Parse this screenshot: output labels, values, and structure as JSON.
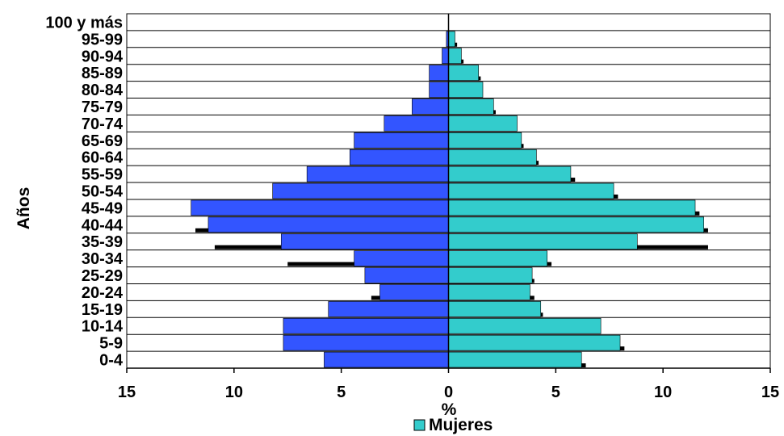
{
  "chart_data": {
    "type": "bar",
    "orientation": "horizontal",
    "xlabel": "%",
    "ylabel": "Años",
    "xlim": [
      -15,
      15
    ],
    "x_ticks": [
      -15,
      -10,
      -5,
      0,
      5,
      10,
      15
    ],
    "x_tick_labels": [
      "15",
      "10",
      "5",
      "0",
      "5",
      "10",
      "15"
    ],
    "grid": "horizontal",
    "legend_position": "bottom",
    "categories": [
      "0-4",
      "5-9",
      "10-14",
      "15-19",
      "20-24",
      "25-29",
      "30-34",
      "35-39",
      "40-44",
      "45-49",
      "50-54",
      "55-59",
      "60-64",
      "65-69",
      "70-74",
      "75-79",
      "80-84",
      "85-89",
      "90-94",
      "95-99",
      "100 y más"
    ],
    "series": [
      {
        "key": "left",
        "color": "#3355ff",
        "values": [
          5.8,
          7.7,
          7.7,
          5.6,
          3.2,
          3.9,
          4.4,
          7.8,
          11.2,
          12.0,
          8.2,
          6.6,
          4.6,
          4.4,
          3.0,
          1.7,
          0.9,
          0.9,
          0.3,
          0.1,
          0.0
        ]
      },
      {
        "name": "Mujeres",
        "key": "right",
        "color": "#33cccc",
        "values": [
          6.2,
          8.0,
          7.1,
          4.3,
          3.8,
          3.9,
          4.6,
          8.8,
          11.9,
          11.5,
          7.7,
          5.7,
          4.1,
          3.4,
          3.2,
          2.1,
          1.6,
          1.4,
          0.6,
          0.3,
          0.0
        ]
      }
    ],
    "overlay": {
      "color": "#000000",
      "left_values": [
        0.3,
        0,
        0,
        0,
        3.6,
        0,
        7.5,
        10.9,
        11.8,
        0,
        0,
        0,
        0,
        0,
        0,
        0,
        0,
        0,
        0,
        0,
        0
      ],
      "right_values": [
        6.4,
        8.2,
        0,
        4.4,
        4.0,
        4.0,
        4.8,
        12.1,
        12.1,
        11.7,
        7.9,
        5.9,
        4.2,
        3.5,
        0,
        2.2,
        0,
        1.5,
        0.7,
        0.4,
        0.0
      ]
    },
    "legend": [
      "Mujeres"
    ]
  }
}
